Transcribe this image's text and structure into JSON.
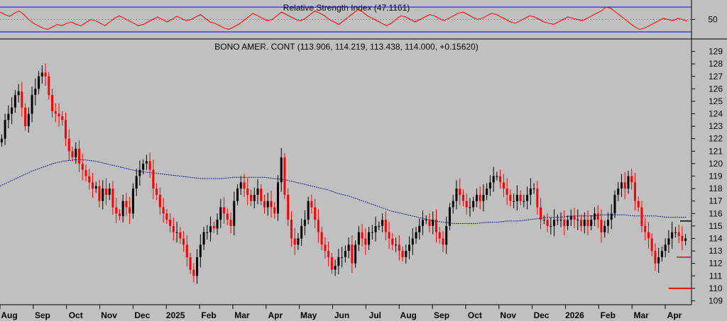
{
  "chart_data": [
    {
      "type": "line",
      "title": "Relative Strength Index (47.1161)",
      "indicator_value": 47.1161,
      "y_ticks": [
        50
      ],
      "upper_band": 70,
      "lower_band": 30,
      "ylim": [
        22,
        78
      ],
      "line_color": "#ff0000",
      "band_color": "#0000ff",
      "values": [
        62,
        58,
        55,
        60,
        64,
        58,
        50,
        44,
        40,
        36,
        34,
        38,
        42,
        40,
        44,
        46,
        42,
        40,
        45,
        50,
        48,
        44,
        40,
        46,
        52,
        56,
        52,
        48,
        44,
        40,
        42,
        46,
        50,
        54,
        50,
        46,
        50,
        55,
        52,
        48,
        50,
        54,
        58,
        52,
        46,
        44,
        40,
        36,
        34,
        38,
        42,
        48,
        54,
        60,
        56,
        52,
        48,
        50,
        56,
        62,
        58,
        54,
        50,
        48,
        52,
        58,
        64,
        60,
        56,
        50,
        46,
        42,
        48,
        54,
        60,
        66,
        62,
        56,
        52,
        48,
        44,
        40,
        44,
        50,
        56,
        54,
        50,
        46,
        50,
        54,
        58,
        56,
        52,
        48,
        52,
        56,
        60,
        62,
        58,
        54,
        50,
        52,
        56,
        60,
        58,
        54,
        50,
        46,
        44,
        48,
        52,
        56,
        54,
        50,
        46,
        44,
        42,
        46,
        50,
        54,
        52,
        50,
        48,
        52,
        56,
        60,
        64,
        70,
        68,
        62,
        56,
        50,
        44,
        38,
        34,
        36,
        40,
        44,
        48,
        52,
        50,
        48,
        52,
        50,
        47
      ]
    },
    {
      "type": "candlestick",
      "title": "BONO AMER. CONT (113.906, 114.219, 113.438, 114.000, +0.15620)",
      "last": {
        "open": 113.906,
        "high": 114.219,
        "low": 113.438,
        "close": 114.0,
        "change": "+0.15620"
      },
      "x_ticks": [
        "Aug",
        "Sep",
        "Oct",
        "Nov",
        "Dec",
        "2025",
        "Feb",
        "Mar",
        "Apr",
        "May",
        "Jun",
        "Jul",
        "Aug",
        "Sep",
        "Oct",
        "Nov",
        "Dec",
        "2026",
        "Feb",
        "Mar",
        "Apr"
      ],
      "y_ticks": [
        109,
        110,
        111,
        112,
        113,
        114,
        115,
        116,
        117,
        118,
        119,
        120,
        121,
        122,
        123,
        124,
        125,
        126,
        127,
        128,
        129
      ],
      "ylim": [
        108.8,
        129.6
      ],
      "up_color": "#000000",
      "down_color": "#ff0000",
      "moving_average_color": "#1a1a8c",
      "closes": [
        122.0,
        123.5,
        124.0,
        124.5,
        125.5,
        125.8,
        124.5,
        123.0,
        124.0,
        125.5,
        126.0,
        127.0,
        127.3,
        127.0,
        125.5,
        124.2,
        124.0,
        123.8,
        123.5,
        122.0,
        121.0,
        120.5,
        121.2,
        120.0,
        119.5,
        119.0,
        118.5,
        118.0,
        118.2,
        117.0,
        118.0,
        117.5,
        118.0,
        116.5,
        116.0,
        115.8,
        117.0,
        116.5,
        116.0,
        118.0,
        119.0,
        119.5,
        120.0,
        120.2,
        119.5,
        118.0,
        117.5,
        116.5,
        116.0,
        115.5,
        115.0,
        114.5,
        114.5,
        114.0,
        113.5,
        112.5,
        111.5,
        111.0,
        112.5,
        113.5,
        114.5,
        114.5,
        115.0,
        114.8,
        115.5,
        116.5,
        116.0,
        115.5,
        115.0,
        117.0,
        118.0,
        118.5,
        118.0,
        117.5,
        117.0,
        117.5,
        118.0,
        117.0,
        116.5,
        117.0,
        116.5,
        116.0,
        118.5,
        120.5,
        117.5,
        115.5,
        114.0,
        113.5,
        114.0,
        115.0,
        115.5,
        117.0,
        116.5,
        115.5,
        114.5,
        113.5,
        113.0,
        112.5,
        111.5,
        111.8,
        112.5,
        112.5,
        113.0,
        113.5,
        112.0,
        113.5,
        114.5,
        114.0,
        113.5,
        114.5,
        114.5,
        115.0,
        115.0,
        115.5,
        114.5,
        114.0,
        113.5,
        113.5,
        113.0,
        112.5,
        113.0,
        113.5,
        114.0,
        114.5,
        115.0,
        115.5,
        115.5,
        115.0,
        115.5,
        114.5,
        114.0,
        113.5,
        115.0,
        116.5,
        117.0,
        118.0,
        117.5,
        117.0,
        116.5,
        116.5,
        117.0,
        117.5,
        117.0,
        117.5,
        118.0,
        118.5,
        119.0,
        119.0,
        118.5,
        118.0,
        117.5,
        117.0,
        117.0,
        117.5,
        117.0,
        117.0,
        117.5,
        118.0,
        118.0,
        116.5,
        115.5,
        115.5,
        115.0,
        115.0,
        115.5,
        115.5,
        115.5,
        115.0,
        115.5,
        115.8,
        115.5,
        115.5,
        115.0,
        115.5,
        115.0,
        115.5,
        116.0,
        115.5,
        114.5,
        115.0,
        115.5,
        116.0,
        117.5,
        118.0,
        118.5,
        118.0,
        119.0,
        118.5,
        117.0,
        116.5,
        115.0,
        114.5,
        114.0,
        113.0,
        112.0,
        112.5,
        113.0,
        113.5,
        114.0,
        114.5,
        114.5,
        114.2,
        113.8,
        114.0
      ],
      "moving_average": [
        118.2,
        118.6,
        119.0,
        119.4,
        119.7,
        120.0,
        120.2,
        120.3,
        120.3,
        120.2,
        120.0,
        119.8,
        119.6,
        119.4,
        119.3,
        119.2,
        119.1,
        119.0,
        118.9,
        118.8,
        118.8,
        118.8,
        118.9,
        118.9,
        118.9,
        118.9,
        118.8,
        118.7,
        118.5,
        118.3,
        118.1,
        117.9,
        117.6,
        117.4,
        117.1,
        116.8,
        116.5,
        116.2,
        116.0,
        115.8,
        115.6,
        115.4,
        115.3,
        115.2,
        115.2,
        115.2,
        115.3,
        115.3,
        115.4,
        115.4,
        115.5,
        115.6,
        115.7,
        115.7,
        115.8,
        115.8,
        115.8,
        115.9,
        115.9,
        115.9,
        115.8,
        115.8,
        115.8,
        115.7,
        115.7,
        115.7
      ],
      "markers": [
        {
          "label": "short bar",
          "value": 115.4,
          "color": "#000000"
        },
        {
          "label": "short bar",
          "value": 112.5,
          "color": "#ff0000"
        },
        {
          "label": "short bar",
          "value": 110.0,
          "color": "#ff0000"
        }
      ]
    }
  ]
}
